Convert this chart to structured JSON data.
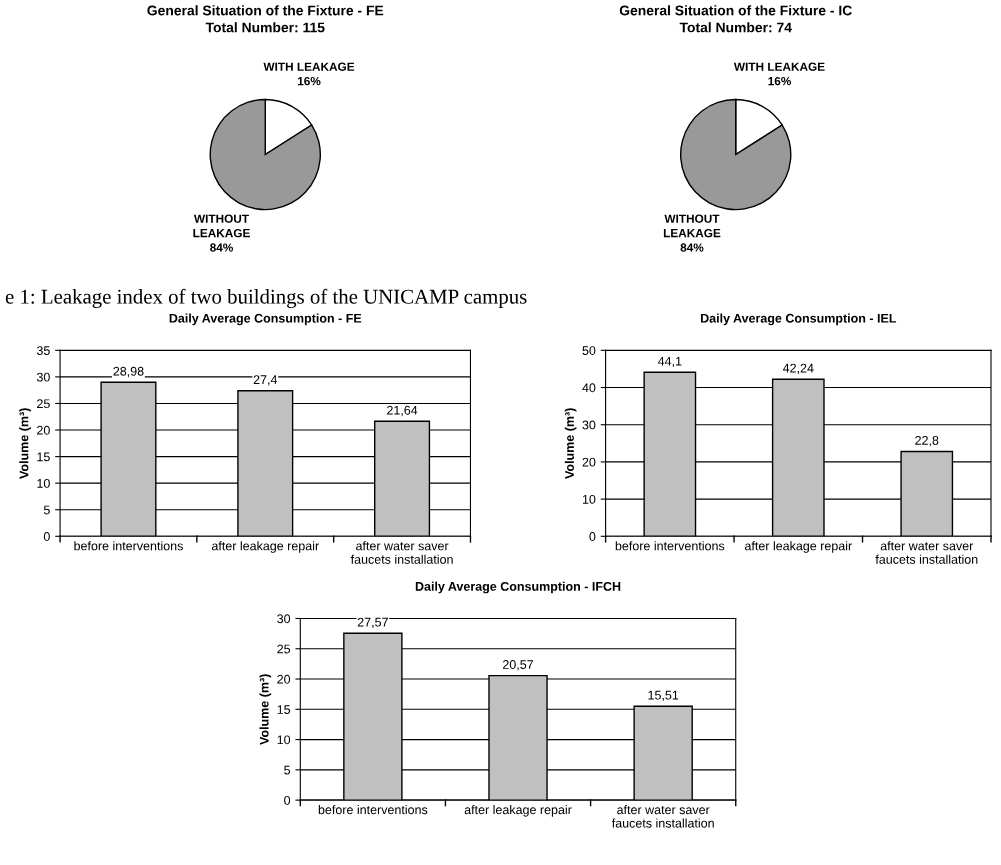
{
  "chart_data": [
    {
      "type": "pie",
      "title": "General Situation of the Fixture - FE",
      "subtitle": "Total Number: 115",
      "categories": [
        "WITH LEAKAGE",
        "WITHOUT\nLEAKAGE"
      ],
      "values": [
        16,
        84
      ],
      "value_labels": [
        "16%",
        "84%"
      ],
      "colors": [
        "#ffffff",
        "#999999"
      ],
      "annotations": [
        "e 1: Leakage index of two buildings of the UNICAMP campus"
      ]
    },
    {
      "type": "pie",
      "title": "General Situation of the Fixture - IC",
      "subtitle": "Total Number: 74",
      "categories": [
        "WITH LEAKAGE",
        "WITHOUT\nLEAKAGE"
      ],
      "values": [
        16,
        84
      ],
      "value_labels": [
        "16%",
        "84%"
      ],
      "colors": [
        "#ffffff",
        "#999999"
      ]
    },
    {
      "type": "bar",
      "title": "Daily Average Consumption - FE",
      "ylabel": "Volume (m³)",
      "categories": [
        "before interventions",
        "after leakage repair",
        "after water saver\nfaucets installation"
      ],
      "values": [
        28.98,
        27.4,
        21.64
      ],
      "value_labels": [
        "28,98",
        "27,4",
        "21,64"
      ],
      "color": "#c0c0c0",
      "ylim": [
        0,
        35
      ],
      "yticks": [
        0,
        5,
        10,
        15,
        20,
        25,
        30,
        35
      ],
      "grid": "y"
    },
    {
      "type": "bar",
      "title": "Daily Average Consumption - IEL",
      "ylabel": "Volume (m³)",
      "categories": [
        "before interventions",
        "after leakage repair",
        "after water saver\nfaucets installation"
      ],
      "values": [
        44.1,
        42.24,
        22.8
      ],
      "value_labels": [
        "44,1",
        "42,24",
        "22,8"
      ],
      "color": "#c0c0c0",
      "ylim": [
        0,
        50
      ],
      "yticks": [
        0,
        10,
        20,
        30,
        40,
        50
      ],
      "grid": "y"
    },
    {
      "type": "bar",
      "title": "Daily Average Consumption - IFCH",
      "ylabel": "Volume (m³)",
      "categories": [
        "before interventions",
        "after leakage repair",
        "after water saver\nfaucets installation"
      ],
      "values": [
        27.57,
        20.57,
        15.51
      ],
      "value_labels": [
        "27,57",
        "20,57",
        "15,51"
      ],
      "color": "#c0c0c0",
      "ylim": [
        0,
        30
      ],
      "yticks": [
        0,
        5,
        10,
        15,
        20,
        25,
        30
      ],
      "grid": "y"
    }
  ]
}
